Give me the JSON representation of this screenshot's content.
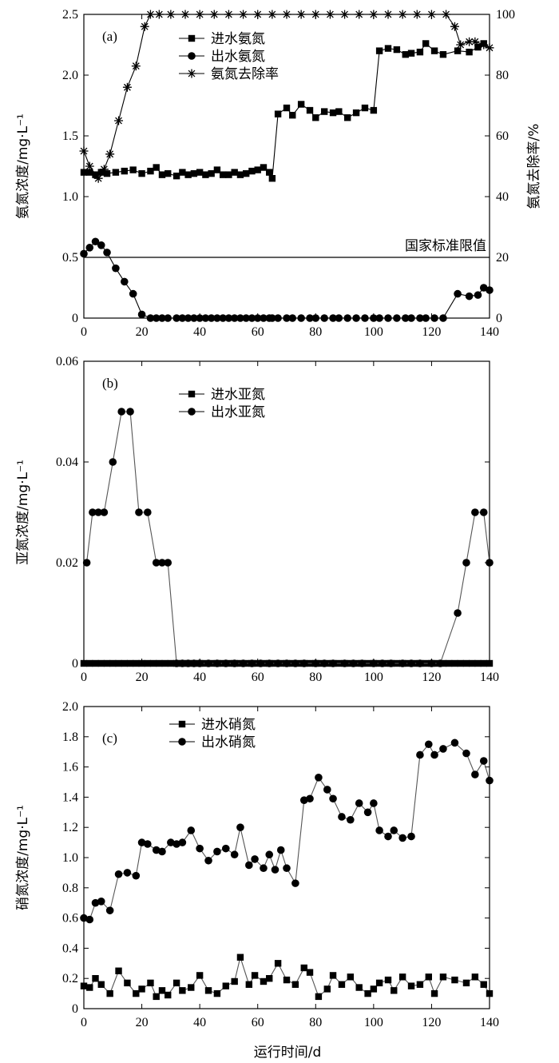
{
  "figure": {
    "xlabel": "运行时间/d"
  },
  "chart_data": [
    {
      "id": "a",
      "type": "line",
      "panel_label": "(a)",
      "ylabel": "氨氮浓度/mg·L⁻¹",
      "y2label": "氨氮去除率/%",
      "xlim": [
        0,
        140
      ],
      "ylim": [
        0,
        2.5
      ],
      "y2lim": [
        0,
        100
      ],
      "xticks": [
        "0",
        "20",
        "40",
        "60",
        "80",
        "100",
        "120",
        "140"
      ],
      "yticks": [
        "0",
        "0.5",
        "1.0",
        "1.5",
        "2.0",
        "2.5"
      ],
      "y2ticks": [
        "0",
        "20",
        "40",
        "60",
        "80",
        "100"
      ],
      "legend_position": "top-center",
      "annotation": {
        "text": "国家标准限值",
        "y": 0.5
      },
      "series": [
        {
          "name": "进水氨氮",
          "marker": "square",
          "axis": "left",
          "x": [
            0,
            2,
            4,
            6,
            8,
            11,
            14,
            17,
            20,
            23,
            25,
            27,
            29,
            32,
            34,
            36,
            38,
            40,
            42,
            44,
            46,
            48,
            50,
            52,
            54,
            56,
            58,
            60,
            62,
            64,
            65,
            67,
            70,
            72,
            75,
            78,
            80,
            83,
            86,
            88,
            91,
            94,
            97,
            100,
            102,
            105,
            108,
            111,
            113,
            116,
            118,
            121,
            124,
            129,
            133,
            136,
            138
          ],
          "values": [
            1.2,
            1.2,
            1.18,
            1.2,
            1.19,
            1.2,
            1.21,
            1.22,
            1.19,
            1.21,
            1.24,
            1.18,
            1.19,
            1.17,
            1.2,
            1.18,
            1.19,
            1.2,
            1.18,
            1.19,
            1.22,
            1.18,
            1.18,
            1.2,
            1.18,
            1.19,
            1.21,
            1.22,
            1.24,
            1.2,
            1.15,
            1.68,
            1.73,
            1.67,
            1.76,
            1.71,
            1.65,
            1.7,
            1.69,
            1.7,
            1.65,
            1.69,
            1.73,
            1.71,
            2.2,
            2.22,
            2.21,
            2.17,
            2.18,
            2.19,
            2.26,
            2.2,
            2.17,
            2.2,
            2.19,
            2.23,
            2.26
          ]
        },
        {
          "name": "出水氨氮",
          "marker": "circle",
          "axis": "left",
          "x": [
            0,
            2,
            4,
            6,
            8,
            11,
            14,
            17,
            20,
            23,
            25,
            27,
            29,
            32,
            34,
            36,
            38,
            40,
            42,
            44,
            46,
            48,
            50,
            52,
            54,
            56,
            58,
            60,
            62,
            64,
            65,
            67,
            70,
            72,
            75,
            78,
            80,
            83,
            86,
            88,
            91,
            94,
            97,
            100,
            102,
            105,
            108,
            111,
            113,
            116,
            118,
            121,
            124,
            129,
            133,
            136,
            138,
            140
          ],
          "values": [
            0.53,
            0.58,
            0.63,
            0.6,
            0.54,
            0.41,
            0.3,
            0.2,
            0.03,
            0,
            0,
            0,
            0,
            0,
            0,
            0,
            0,
            0,
            0,
            0,
            0,
            0,
            0,
            0,
            0,
            0,
            0,
            0,
            0,
            0,
            0,
            0,
            0,
            0,
            0,
            0,
            0,
            0,
            0,
            0,
            0,
            0,
            0,
            0,
            0,
            0,
            0,
            0,
            0,
            0,
            0,
            0,
            0,
            0.2,
            0.18,
            0.19,
            0.25,
            0.23
          ]
        },
        {
          "name": "氨氮去除率",
          "marker": "asterisk",
          "axis": "right",
          "x": [
            0,
            2,
            5,
            7,
            9,
            12,
            15,
            18,
            21,
            23,
            26,
            30,
            35,
            40,
            45,
            50,
            55,
            60,
            65,
            70,
            75,
            80,
            85,
            90,
            95,
            100,
            105,
            110,
            115,
            120,
            125,
            128,
            130,
            133,
            135,
            138,
            140
          ],
          "values": [
            55,
            50,
            46,
            49,
            54,
            65,
            76,
            83,
            96,
            100,
            100,
            100,
            100,
            100,
            100,
            100,
            100,
            100,
            100,
            100,
            100,
            100,
            100,
            100,
            100,
            100,
            100,
            100,
            100,
            100,
            100,
            96,
            90,
            91,
            91,
            90,
            89
          ]
        }
      ]
    },
    {
      "id": "b",
      "type": "line",
      "panel_label": "(b)",
      "ylabel": "亚氮浓度/mg·L⁻¹",
      "xlim": [
        0,
        140
      ],
      "ylim": [
        0,
        0.06
      ],
      "xticks": [
        "0",
        "20",
        "40",
        "60",
        "80",
        "100",
        "120",
        "140"
      ],
      "yticks": [
        "0",
        "0.02",
        "0.04",
        "0.06"
      ],
      "legend_position": "top-center",
      "series": [
        {
          "name": "进水亚氮",
          "marker": "square",
          "x": [
            0,
            2,
            4,
            6,
            8,
            10,
            12,
            14,
            16,
            18,
            20,
            22,
            24,
            26,
            28,
            30,
            32,
            34,
            36,
            38,
            40,
            42,
            44,
            46,
            48,
            50,
            52,
            54,
            56,
            58,
            60,
            62,
            64,
            66,
            68,
            70,
            72,
            74,
            76,
            78,
            80,
            82,
            84,
            86,
            88,
            90,
            92,
            94,
            96,
            98,
            100,
            102,
            104,
            106,
            108,
            110,
            112,
            114,
            116,
            118,
            120,
            122,
            124,
            126,
            128,
            130,
            132,
            134,
            136,
            138,
            140
          ],
          "values": [
            0,
            0,
            0,
            0,
            0,
            0,
            0,
            0,
            0,
            0,
            0,
            0,
            0,
            0,
            0,
            0,
            0,
            0,
            0,
            0,
            0,
            0,
            0,
            0,
            0,
            0,
            0,
            0,
            0,
            0,
            0,
            0,
            0,
            0,
            0,
            0,
            0,
            0,
            0,
            0,
            0,
            0,
            0,
            0,
            0,
            0,
            0,
            0,
            0,
            0,
            0,
            0,
            0,
            0,
            0,
            0,
            0,
            0,
            0,
            0,
            0,
            0,
            0,
            0,
            0,
            0,
            0,
            0,
            0,
            0,
            0
          ]
        },
        {
          "name": "出水亚氮",
          "marker": "circle",
          "x": [
            1,
            3,
            5,
            7,
            10,
            13,
            16,
            19,
            22,
            25,
            27,
            29,
            32,
            34,
            36,
            38,
            40,
            43,
            46,
            49,
            52,
            55,
            58,
            61,
            64,
            67,
            70,
            73,
            76,
            80,
            83,
            86,
            90,
            93,
            96,
            100,
            103,
            106,
            110,
            113,
            116,
            120,
            123,
            129,
            132,
            135,
            138,
            140
          ],
          "values": [
            0.02,
            0.03,
            0.03,
            0.03,
            0.04,
            0.05,
            0.05,
            0.03,
            0.03,
            0.02,
            0.02,
            0.02,
            0,
            0,
            0,
            0,
            0,
            0,
            0,
            0,
            0,
            0,
            0,
            0,
            0,
            0,
            0,
            0,
            0,
            0,
            0,
            0,
            0,
            0,
            0,
            0,
            0,
            0,
            0,
            0,
            0,
            0,
            0,
            0.01,
            0.02,
            0.03,
            0.03,
            0.02
          ]
        }
      ]
    },
    {
      "id": "c",
      "type": "line",
      "panel_label": "(c)",
      "ylabel": "硝氮浓度/mg·L⁻¹",
      "xlabel": "运行时间/d",
      "xlim": [
        0,
        140
      ],
      "ylim": [
        0,
        2.0
      ],
      "xticks": [
        "0",
        "20",
        "40",
        "60",
        "80",
        "100",
        "120",
        "140"
      ],
      "yticks": [
        "0",
        "0.2",
        "0.4",
        "0.6",
        "0.8",
        "1.0",
        "1.2",
        "1.4",
        "1.6",
        "1.8",
        "2.0"
      ],
      "legend_position": "top-left",
      "series": [
        {
          "name": "进水硝氮",
          "marker": "square",
          "x": [
            0,
            2,
            4,
            6,
            9,
            12,
            15,
            18,
            20,
            23,
            25,
            27,
            29,
            32,
            34,
            37,
            40,
            43,
            46,
            49,
            52,
            54,
            57,
            59,
            62,
            64,
            67,
            70,
            73,
            76,
            78,
            81,
            84,
            86,
            89,
            92,
            95,
            98,
            100,
            102,
            105,
            107,
            110,
            113,
            116,
            119,
            121,
            124,
            128,
            132,
            135,
            138,
            140
          ],
          "values": [
            0.15,
            0.14,
            0.2,
            0.16,
            0.1,
            0.25,
            0.17,
            0.1,
            0.13,
            0.17,
            0.08,
            0.12,
            0.09,
            0.17,
            0.12,
            0.14,
            0.22,
            0.12,
            0.1,
            0.15,
            0.18,
            0.34,
            0.16,
            0.22,
            0.18,
            0.2,
            0.3,
            0.19,
            0.16,
            0.27,
            0.24,
            0.08,
            0.13,
            0.22,
            0.16,
            0.21,
            0.14,
            0.1,
            0.13,
            0.17,
            0.19,
            0.12,
            0.21,
            0.15,
            0.16,
            0.21,
            0.1,
            0.21,
            0.19,
            0.17,
            0.21,
            0.16,
            0.1
          ]
        },
        {
          "name": "出水硝氮",
          "marker": "circle",
          "x": [
            0,
            2,
            4,
            6,
            9,
            12,
            15,
            18,
            20,
            22,
            25,
            27,
            30,
            32,
            34,
            37,
            40,
            43,
            46,
            49,
            52,
            54,
            57,
            59,
            62,
            64,
            66,
            68,
            70,
            73,
            76,
            78,
            81,
            84,
            86,
            89,
            92,
            95,
            98,
            100,
            102,
            105,
            107,
            110,
            113,
            116,
            119,
            121,
            124,
            128,
            132,
            135,
            138,
            140
          ],
          "values": [
            0.6,
            0.59,
            0.7,
            0.71,
            0.65,
            0.89,
            0.9,
            0.88,
            1.1,
            1.09,
            1.05,
            1.04,
            1.1,
            1.09,
            1.1,
            1.18,
            1.06,
            0.98,
            1.04,
            1.06,
            1.02,
            1.2,
            0.95,
            0.99,
            0.93,
            1.02,
            0.92,
            1.05,
            0.93,
            0.83,
            1.38,
            1.39,
            1.53,
            1.45,
            1.39,
            1.27,
            1.25,
            1.36,
            1.3,
            1.36,
            1.18,
            1.14,
            1.18,
            1.13,
            1.14,
            1.68,
            1.75,
            1.68,
            1.72,
            1.76,
            1.69,
            1.55,
            1.64,
            1.51
          ]
        }
      ]
    }
  ]
}
